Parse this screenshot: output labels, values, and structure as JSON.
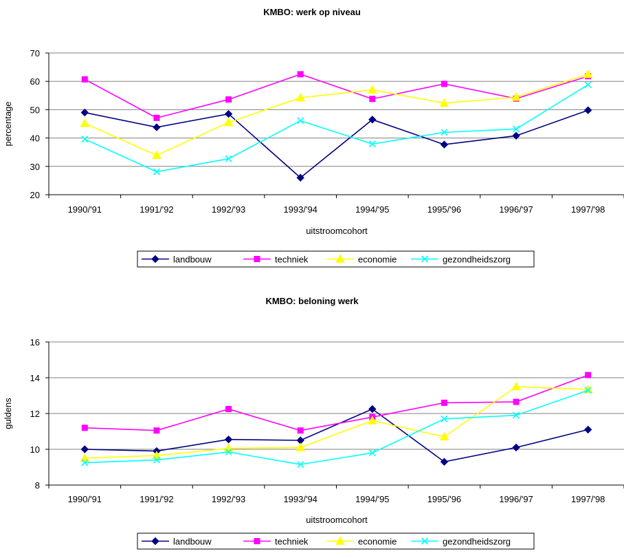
{
  "colors": {
    "landbouw": "#000080",
    "techniek": "#FF00FF",
    "economie": "#FFFF00",
    "gezondheidszorg": "#00FFFF",
    "grid": "#808080",
    "axis": "#000000"
  },
  "chart_data": [
    {
      "type": "line",
      "title": "KMBO: werk op niveau",
      "xlabel": "uitstroomcohort",
      "ylabel": "percentage",
      "ylim": [
        20,
        70
      ],
      "yticks": [
        20,
        30,
        40,
        50,
        60,
        70
      ],
      "grid": true,
      "legend_placement": "bottom",
      "categories": [
        "1990/'91",
        "1991/'92",
        "1992/'93",
        "1993/'94",
        "1994/'95",
        "1995/'96",
        "1996/'97",
        "1997/'98"
      ],
      "series": [
        {
          "name": "landbouw",
          "marker": "diamond",
          "values": [
            49,
            43.8,
            48.5,
            26,
            46.5,
            37.7,
            40.8,
            49.8
          ]
        },
        {
          "name": "techniek",
          "marker": "square",
          "values": [
            60.7,
            47.1,
            53.6,
            62.5,
            53.8,
            59.1,
            53.9,
            61.8
          ]
        },
        {
          "name": "economie",
          "marker": "triangle",
          "values": [
            45.2,
            33.9,
            45.5,
            54.2,
            57,
            52.3,
            54.4,
            62.5
          ]
        },
        {
          "name": "gezondheidszorg",
          "marker": "x",
          "values": [
            39.6,
            28.1,
            32.7,
            46.1,
            37.9,
            42,
            43.2,
            58.8
          ]
        }
      ]
    },
    {
      "type": "line",
      "title": "KMBO: beloning werk",
      "xlabel": "uitstroomcohort",
      "ylabel": "guldens",
      "ylim": [
        8,
        16
      ],
      "yticks": [
        8,
        10,
        12,
        14,
        16
      ],
      "grid": true,
      "legend_placement": "bottom",
      "categories": [
        "1990/'91",
        "1991/'92",
        "1992/'93",
        "1993/'94",
        "1994/'95",
        "1995/'96",
        "1996/'97",
        "1997/'98"
      ],
      "series": [
        {
          "name": "landbouw",
          "marker": "diamond",
          "values": [
            10,
            9.9,
            10.55,
            10.5,
            12.25,
            9.3,
            10.1,
            11.1
          ]
        },
        {
          "name": "techniek",
          "marker": "square",
          "values": [
            11.2,
            11.05,
            12.25,
            11.05,
            11.8,
            12.6,
            12.65,
            14.15
          ]
        },
        {
          "name": "economie",
          "marker": "triangle",
          "values": [
            9.5,
            9.65,
            10.05,
            10.1,
            11.6,
            10.7,
            13.5,
            13.35
          ]
        },
        {
          "name": "gezondheidszorg",
          "marker": "x",
          "values": [
            9.25,
            9.4,
            9.85,
            9.15,
            9.8,
            11.7,
            11.9,
            13.3
          ]
        }
      ]
    }
  ]
}
